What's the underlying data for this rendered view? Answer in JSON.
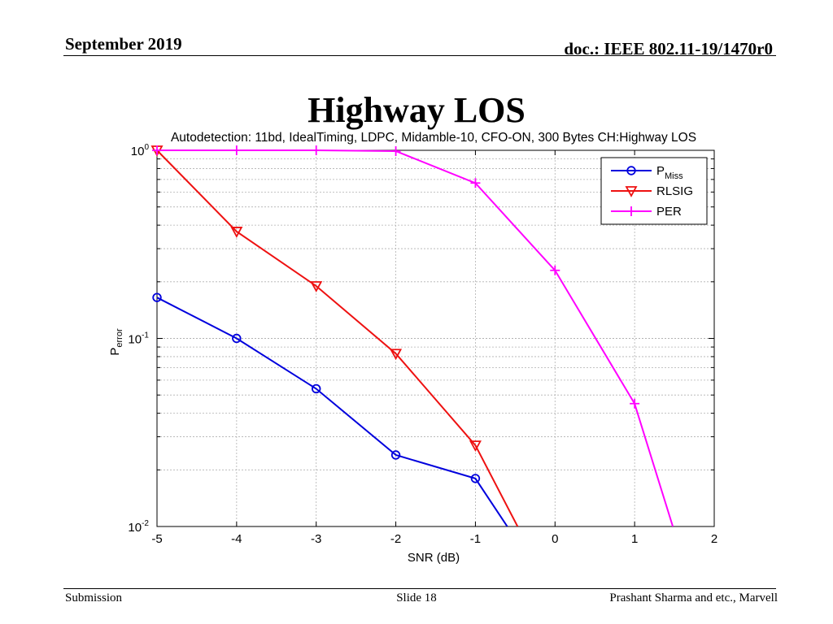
{
  "header": {
    "date": "September 2019",
    "doc_id": "doc.: IEEE 802.11-19/1470r0"
  },
  "slide_title": "Highway LOS",
  "footer": {
    "left": "Submission",
    "center": "Slide 18",
    "right": "Prashant Sharma and etc., Marvell"
  },
  "chart_data": {
    "type": "line",
    "title": "Autodetection: 11bd, IdealTiming, LDPC, Midamble-10, CFO-ON, 300 Bytes CH:Highway LOS",
    "xlabel": "SNR (dB)",
    "ylabel": {
      "main": "P",
      "sub": "error"
    },
    "xlim": [
      -5,
      2
    ],
    "ylim": [
      0.01,
      1
    ],
    "yscale": "log",
    "xticks": [
      "-5",
      "-4",
      "-3",
      "-2",
      "-1",
      "0",
      "1",
      "2"
    ],
    "yticks": [
      {
        "base": "10",
        "exp": "-2",
        "value": 0.01
      },
      {
        "base": "10",
        "exp": "-1",
        "value": 0.1
      },
      {
        "base": "10",
        "exp": "0",
        "value": 1
      }
    ],
    "grid": true,
    "legend_position": "top-right",
    "series": [
      {
        "name": "P",
        "name_sub": "Miss",
        "color": "#0000dd",
        "marker": "circle",
        "x": [
          -5,
          -4,
          -3,
          -2,
          -1,
          -0.6
        ],
        "y": [
          0.165,
          0.1,
          0.054,
          0.024,
          0.018,
          0.01
        ]
      },
      {
        "name": "RLSIG",
        "name_sub": "",
        "color": "#ee1111",
        "marker": "triangle-down",
        "x": [
          -5,
          -4,
          -3,
          -2,
          -1,
          -0.47
        ],
        "y": [
          1.0,
          0.37,
          0.19,
          0.083,
          0.027,
          0.01
        ]
      },
      {
        "name": "PER",
        "name_sub": "",
        "color": "#ff00ff",
        "marker": "plus",
        "x": [
          -5,
          -4,
          -3,
          -2,
          -1,
          0,
          1,
          1.48
        ],
        "y": [
          1.0,
          1.0,
          1.0,
          0.99,
          0.67,
          0.23,
          0.045,
          0.01
        ]
      }
    ]
  }
}
